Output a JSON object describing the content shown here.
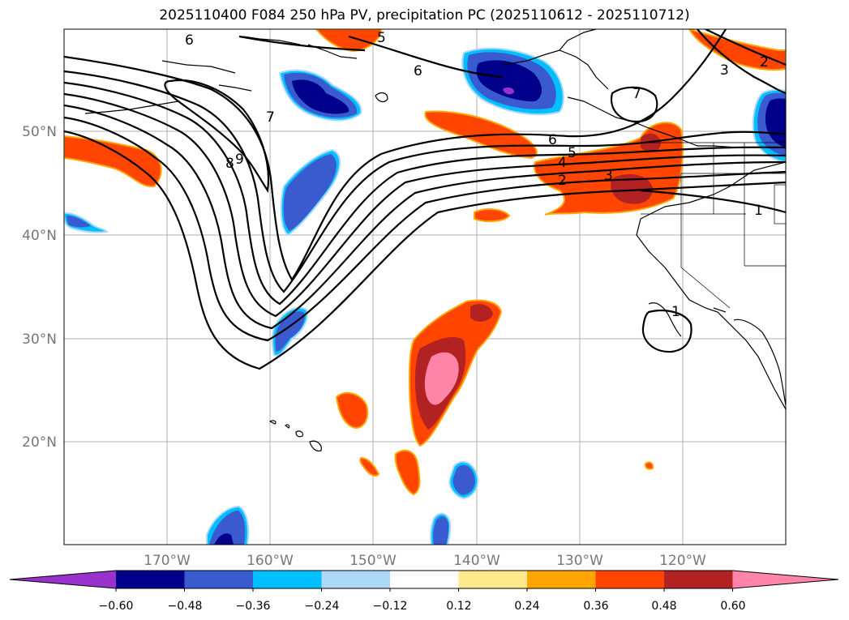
{
  "title": "2025110400 F084 250 hPa PV, precipitation PC (2025110612 - 2025110712)",
  "map": {
    "lat_labels": [
      "50°N",
      "40°N",
      "30°N",
      "20°N"
    ],
    "lon_labels": [
      "170°W",
      "160°W",
      "150°W",
      "140°W",
      "130°W",
      "120°W"
    ],
    "contour_labels": [
      "6",
      "5",
      "6",
      "7",
      "7",
      "8",
      "9",
      "6",
      "5",
      "4",
      "2",
      "3",
      "2",
      "3",
      "1",
      "1"
    ]
  },
  "colorbar": {
    "colors": [
      "#9932cc",
      "#00008b",
      "#3a5bd0",
      "#00bfff",
      "#add8f7",
      "#ffffff",
      "#ffe98a",
      "#ffa500",
      "#ff4500",
      "#b22222",
      "#ff85a8"
    ],
    "tick_labels": [
      "−0.60",
      "−0.48",
      "−0.36",
      "−0.24",
      "−0.12",
      "0.12",
      "0.24",
      "0.36",
      "0.48",
      "0.60"
    ]
  }
}
